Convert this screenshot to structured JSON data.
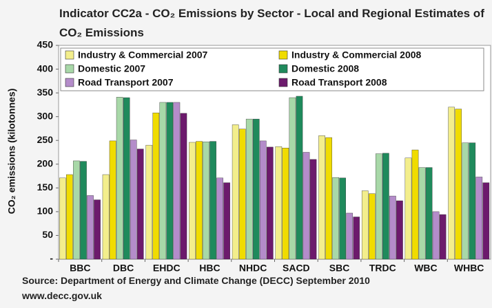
{
  "chart_data": {
    "type": "bar",
    "title": "Indicator CC2a - CO₂ Emissions by Sector - Local and Regional Estimates of CO₂ Emissions",
    "y_label": "CO₂ emissions (kilotonnes)",
    "source": [
      "Source: Department of Energy and Climate Change (DECC) September 2010",
      "www.decc.gov.uk"
    ],
    "categories": [
      "BBC",
      "DBC",
      "EHDC",
      "HBC",
      "NHDC",
      "SACD",
      "SBC",
      "TRDC",
      "WBC",
      "WHBC"
    ],
    "series": [
      {
        "name": "Industry & Commercial 2007",
        "color": "#f3ee8c",
        "values": [
          171,
          178,
          240,
          246,
          283,
          237,
          260,
          144,
          213,
          320
        ]
      },
      {
        "name": "Industry & Commercial 2008",
        "color": "#f0dc00",
        "values": [
          178,
          249,
          308,
          248,
          274,
          234,
          256,
          138,
          230,
          316
        ]
      },
      {
        "name": "Domestic 2007",
        "color": "#a8d8a8",
        "values": [
          207,
          341,
          330,
          247,
          295,
          340,
          172,
          222,
          193,
          245
        ]
      },
      {
        "name": "Domestic 2008",
        "color": "#1f8a5c",
        "values": [
          206,
          340,
          330,
          248,
          295,
          343,
          171,
          223,
          193,
          245
        ]
      },
      {
        "name": "Road Transport 2007",
        "color": "#b48cca",
        "values": [
          134,
          251,
          330,
          171,
          249,
          225,
          97,
          133,
          100,
          173
        ]
      },
      {
        "name": "Road Transport 2008",
        "color": "#6c1a6c",
        "values": [
          125,
          232,
          307,
          161,
          236,
          210,
          89,
          123,
          94,
          161
        ]
      }
    ],
    "ylim": [
      0,
      450
    ],
    "yticks": [
      {
        "value": 0,
        "label": "-"
      },
      50,
      100,
      150,
      200,
      250,
      300,
      350,
      400,
      450
    ],
    "legend": "top"
  }
}
